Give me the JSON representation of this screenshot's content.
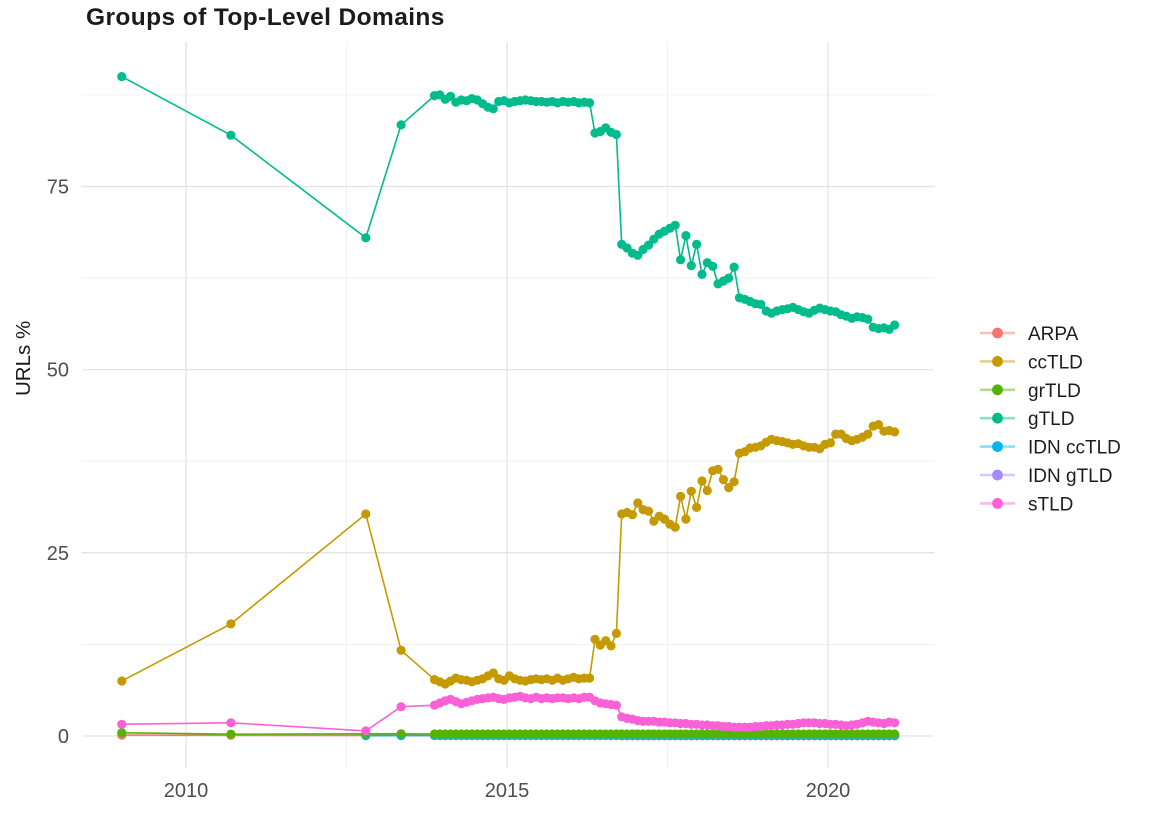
{
  "chart_data": {
    "type": "line",
    "title": "Groups of Top-Level Domains",
    "xlabel": "",
    "ylabel": "URLs %",
    "grid": true,
    "legend_position": "right",
    "x_axis": {
      "ticks": [
        2010,
        2015,
        2020
      ],
      "tick_labels": [
        "2010",
        "2015",
        "2020"
      ],
      "minor": [
        2012.5,
        2017.5
      ],
      "range": [
        2008.4,
        2021.6
      ]
    },
    "y_axis": {
      "ticks": [
        0,
        25,
        50,
        75
      ],
      "tick_labels": [
        "0",
        "25",
        "50",
        "75"
      ],
      "minor": [
        12.5,
        37.5,
        62.5,
        87.5
      ],
      "range": [
        -4.5,
        94.5
      ]
    },
    "text_color": "#4d4d4d",
    "grid_major_color": "#e3e3e3",
    "grid_minor_color": "#efefef",
    "series": [
      {
        "name": "ARPA",
        "color": "#F8766D",
        "zorder": 0,
        "points": [
          [
            2009.0,
            0.12
          ],
          [
            2010.7,
            0.1
          ],
          [
            2012.8,
            0.08
          ],
          [
            2013.35,
            0.08
          ]
        ],
        "monthly": {
          "start": 2013.87,
          "end": 2021.04,
          "value": 0.05
        }
      },
      {
        "name": "ccTLD",
        "color": "#C49A00",
        "zorder": 3,
        "points": [
          [
            2009.0,
            7.5
          ],
          [
            2010.7,
            15.3
          ],
          [
            2012.8,
            30.3
          ],
          [
            2013.35,
            11.7
          ]
        ],
        "monthly": {
          "start": 2013.87,
          "values": [
            7.7,
            7.4,
            7.1,
            7.5,
            7.9,
            7.7,
            7.6,
            7.4,
            7.6,
            7.8,
            8.2,
            8.6,
            7.8,
            7.6,
            8.2,
            7.8,
            7.6,
            7.5,
            7.7,
            7.8,
            7.7,
            7.8,
            7.6,
            7.9,
            7.6,
            7.8,
            8.0,
            7.8,
            7.9,
            7.9,
            13.2,
            12.4,
            13.0,
            12.3,
            14.0,
            30.3,
            30.5,
            30.2,
            31.8,
            30.9,
            30.7,
            29.3,
            30.0,
            29.6,
            28.9,
            28.5,
            32.7,
            29.6,
            33.4,
            31.2,
            34.8,
            33.5,
            36.2,
            36.4,
            35.0,
            33.9,
            34.7,
            38.6,
            38.8,
            39.3,
            39.4,
            39.6,
            40.1,
            40.5,
            40.3,
            40.2,
            40.0,
            39.8,
            39.9,
            39.6,
            39.4,
            39.4,
            39.2,
            39.8,
            40.0,
            41.2,
            41.2,
            40.6,
            40.3,
            40.5,
            40.8,
            41.2,
            42.3,
            42.5,
            41.6,
            41.7,
            41.5
          ]
        }
      },
      {
        "name": "grTLD",
        "color": "#53B400",
        "zorder": 4,
        "points": [
          [
            2009.0,
            0.45
          ],
          [
            2010.7,
            0.25
          ],
          [
            2012.8,
            0.3
          ],
          [
            2013.35,
            0.3
          ]
        ],
        "monthly": {
          "start": 2013.87,
          "end": 2021.04,
          "value": 0.27
        }
      },
      {
        "name": "gTLD",
        "color": "#00BC8D",
        "zorder": 5,
        "points": [
          [
            2009.0,
            90.0
          ],
          [
            2010.7,
            82.0
          ],
          [
            2012.8,
            68.0
          ],
          [
            2013.35,
            83.4
          ]
        ],
        "monthly": {
          "start": 2013.87,
          "values": [
            87.4,
            87.5,
            86.9,
            87.3,
            86.5,
            86.8,
            86.7,
            87.0,
            86.8,
            86.3,
            85.8,
            85.6,
            86.6,
            86.7,
            86.4,
            86.6,
            86.7,
            86.8,
            86.7,
            86.6,
            86.6,
            86.5,
            86.6,
            86.4,
            86.6,
            86.5,
            86.6,
            86.4,
            86.5,
            86.4,
            82.3,
            82.5,
            83.0,
            82.4,
            82.1,
            67.1,
            66.6,
            65.9,
            65.6,
            66.4,
            67.0,
            67.8,
            68.5,
            68.9,
            69.3,
            69.7,
            65.0,
            68.3,
            64.2,
            67.1,
            63.0,
            64.6,
            64.1,
            61.7,
            62.1,
            62.5,
            64.0,
            59.8,
            59.6,
            59.3,
            59.0,
            58.9,
            58.0,
            57.7,
            58.0,
            58.2,
            58.3,
            58.5,
            58.2,
            57.9,
            57.7,
            58.1,
            58.4,
            58.2,
            58.0,
            57.9,
            57.5,
            57.3,
            57.0,
            57.2,
            57.1,
            56.9,
            55.8,
            55.6,
            55.7,
            55.5,
            56.1
          ]
        }
      },
      {
        "name": "IDN ccTLD",
        "color": "#00B6EB",
        "zorder": 2,
        "points": [
          [
            2012.8,
            0.05
          ],
          [
            2013.35,
            0.06
          ]
        ],
        "monthly": {
          "start": 2013.87,
          "end": 2021.04,
          "value": 0.08
        }
      },
      {
        "name": "IDN gTLD",
        "color": "#A58AFF",
        "zorder": 1,
        "points": [],
        "monthly": {
          "start": 2016.79,
          "end": 2021.04,
          "value": 0.02
        }
      },
      {
        "name": "sTLD",
        "color": "#FB61D7",
        "zorder": 6,
        "points": [
          [
            2009.0,
            1.6
          ],
          [
            2010.7,
            1.8
          ],
          [
            2012.8,
            0.7
          ],
          [
            2013.35,
            4.0
          ]
        ],
        "monthly": {
          "start": 2013.87,
          "values": [
            4.2,
            4.5,
            4.8,
            5.0,
            4.7,
            4.4,
            4.6,
            4.8,
            5.0,
            5.1,
            5.2,
            5.3,
            5.1,
            5.0,
            5.2,
            5.3,
            5.4,
            5.2,
            5.1,
            5.3,
            5.1,
            5.2,
            5.1,
            5.2,
            5.2,
            5.1,
            5.2,
            5.1,
            5.3,
            5.3,
            4.8,
            4.5,
            4.4,
            4.3,
            4.2,
            2.6,
            2.4,
            2.3,
            2.1,
            2.0,
            2.0,
            2.0,
            1.9,
            1.9,
            1.8,
            1.8,
            1.7,
            1.7,
            1.6,
            1.6,
            1.5,
            1.5,
            1.4,
            1.4,
            1.3,
            1.3,
            1.2,
            1.2,
            1.2,
            1.2,
            1.3,
            1.3,
            1.4,
            1.4,
            1.5,
            1.5,
            1.6,
            1.6,
            1.7,
            1.8,
            1.8,
            1.8,
            1.7,
            1.7,
            1.6,
            1.6,
            1.5,
            1.4,
            1.5,
            1.6,
            1.8,
            2.0,
            1.9,
            1.8,
            1.7,
            1.9,
            1.8
          ]
        }
      }
    ]
  }
}
